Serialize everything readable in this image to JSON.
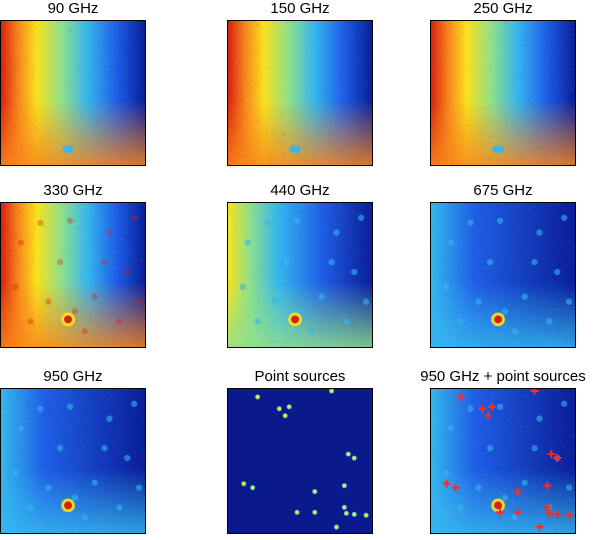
{
  "panels": [
    {
      "title": "90 GHz",
      "style": "red_left"
    },
    {
      "title": "150 GHz",
      "style": "red_left"
    },
    {
      "title": "250 GHz",
      "style": "red_left"
    },
    {
      "title": "330 GHz",
      "style": "red_left_spots"
    },
    {
      "title": "440 GHz",
      "style": "mixed"
    },
    {
      "title": "675 GHz",
      "style": "blue_spots"
    },
    {
      "title": "950 GHz",
      "style": "blue_spots"
    },
    {
      "title": "Point sources",
      "style": "points"
    },
    {
      "title": "950 GHz + point sources",
      "style": "blue_spots_crosses"
    }
  ],
  "colors": {
    "deep_blue": "#0a1e9a",
    "blue": "#1f5fe6",
    "cyan": "#35b6ee",
    "green": "#8fe08a",
    "yellow": "#f8e21e",
    "orange": "#f7861b",
    "red": "#d8200f",
    "point_bg": "#0a1a8c",
    "cross": "#ff2b1e"
  }
}
